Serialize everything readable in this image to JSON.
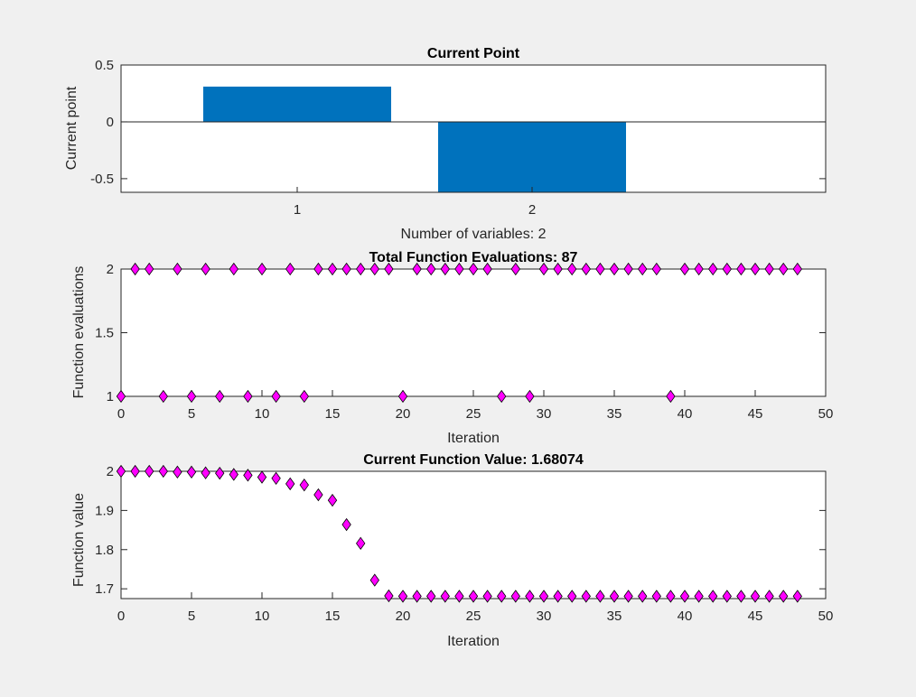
{
  "figure": {
    "background": "#f0f0f0"
  },
  "chart_data": [
    {
      "type": "bar",
      "title": "Current Point",
      "xlabel": "Number of variables: 2",
      "ylabel": "Current point",
      "categories": [
        "1",
        "2"
      ],
      "values": [
        0.31,
        -0.62
      ],
      "ylim": [
        -0.62,
        0.5
      ],
      "yticks": [
        0.5,
        0,
        -0.5
      ],
      "ytick_labels": [
        "0.5",
        "0",
        "-0.5"
      ],
      "bar_color": "#0072bd",
      "grid": false
    },
    {
      "type": "scatter",
      "title": "Total Function Evaluations: 87",
      "xlabel": "Iteration",
      "ylabel": "Function evaluations",
      "x": [
        0,
        1,
        2,
        3,
        4,
        5,
        6,
        7,
        8,
        9,
        10,
        11,
        12,
        13,
        14,
        15,
        16,
        17,
        18,
        19,
        20,
        21,
        22,
        23,
        24,
        25,
        26,
        27,
        28,
        29,
        30,
        31,
        32,
        33,
        34,
        35,
        36,
        37,
        38,
        39,
        40,
        41,
        42,
        43,
        44,
        45,
        46,
        47,
        48
      ],
      "y": [
        1,
        2,
        2,
        1,
        2,
        1,
        2,
        1,
        2,
        1,
        2,
        1,
        2,
        1,
        2,
        2,
        2,
        2,
        2,
        2,
        1,
        2,
        2,
        2,
        2,
        2,
        2,
        1,
        2,
        1,
        2,
        2,
        2,
        2,
        2,
        2,
        2,
        2,
        2,
        1,
        2,
        2,
        2,
        2,
        2,
        2,
        2,
        2,
        2
      ],
      "xlim": [
        0,
        50
      ],
      "ylim": [
        1,
        2
      ],
      "xticks": [
        0,
        5,
        10,
        15,
        20,
        25,
        30,
        35,
        40,
        45,
        50
      ],
      "xtick_labels": [
        "0",
        "5",
        "10",
        "15",
        "20",
        "25",
        "30",
        "35",
        "40",
        "45",
        "50"
      ],
      "yticks": [
        1,
        1.5,
        2
      ],
      "ytick_labels": [
        "1",
        "1.5",
        "2"
      ],
      "marker": "diamond",
      "marker_color": "#ff00ff",
      "grid": false
    },
    {
      "type": "scatter",
      "title": "Current Function Value: 1.68074",
      "xlabel": "Iteration",
      "ylabel": "Function value",
      "x": [
        0,
        1,
        2,
        3,
        4,
        5,
        6,
        7,
        8,
        9,
        10,
        11,
        12,
        13,
        14,
        15,
        16,
        17,
        18,
        19,
        20,
        21,
        22,
        23,
        24,
        25,
        26,
        27,
        28,
        29,
        30,
        31,
        32,
        33,
        34,
        35,
        36,
        37,
        38,
        39,
        40,
        41,
        42,
        43,
        44,
        45,
        46,
        47,
        48
      ],
      "y": [
        2.0,
        2.0,
        2.0,
        2.0,
        1.998,
        1.998,
        1.996,
        1.995,
        1.992,
        1.99,
        1.985,
        1.982,
        1.968,
        1.965,
        1.94,
        1.926,
        1.864,
        1.816,
        1.722,
        1.682,
        1.681,
        1.681,
        1.681,
        1.681,
        1.681,
        1.681,
        1.681,
        1.681,
        1.681,
        1.681,
        1.681,
        1.681,
        1.681,
        1.681,
        1.681,
        1.681,
        1.681,
        1.681,
        1.681,
        1.681,
        1.681,
        1.681,
        1.681,
        1.681,
        1.681,
        1.681,
        1.681,
        1.681,
        1.681
      ],
      "xlim": [
        0,
        50
      ],
      "ylim": [
        1.675,
        2.0
      ],
      "xticks": [
        0,
        5,
        10,
        15,
        20,
        25,
        30,
        35,
        40,
        45,
        50
      ],
      "xtick_labels": [
        "0",
        "5",
        "10",
        "15",
        "20",
        "25",
        "30",
        "35",
        "40",
        "45",
        "50"
      ],
      "yticks": [
        1.7,
        1.8,
        1.9,
        2
      ],
      "ytick_labels": [
        "1.7",
        "1.8",
        "1.9",
        "2"
      ],
      "marker": "diamond",
      "marker_color": "#ff00ff",
      "grid": false
    }
  ]
}
